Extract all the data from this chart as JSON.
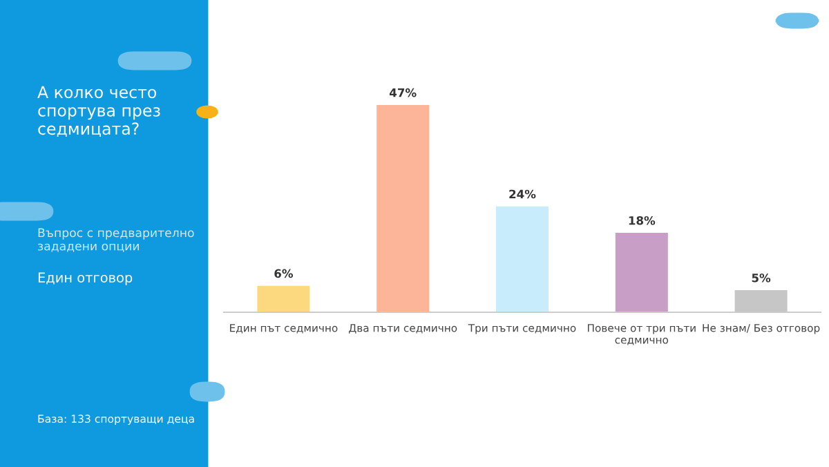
{
  "chart_data": {
    "type": "bar",
    "title": "А колко често спортува през седмицата?",
    "subtitle": "Въпрос с предварително зададени опции",
    "annotations": [
      "Един отговор",
      "База: 133 спортуващи деца"
    ],
    "categories": [
      "Един път седмично",
      "Два пъти седмично",
      "Три пъти седмично",
      "Повече от три пъти седмично",
      "Не знам/ Без отговор"
    ],
    "values": [
      6,
      47,
      24,
      18,
      5
    ],
    "value_labels": [
      "6%",
      "47%",
      "24%",
      "18%",
      "5%"
    ],
    "colors": [
      "#fcd97e",
      "#fdb59a",
      "#c8ecfc",
      "#c89dc6",
      "#c6c6c6"
    ],
    "grid": false,
    "legend": false
  }
}
